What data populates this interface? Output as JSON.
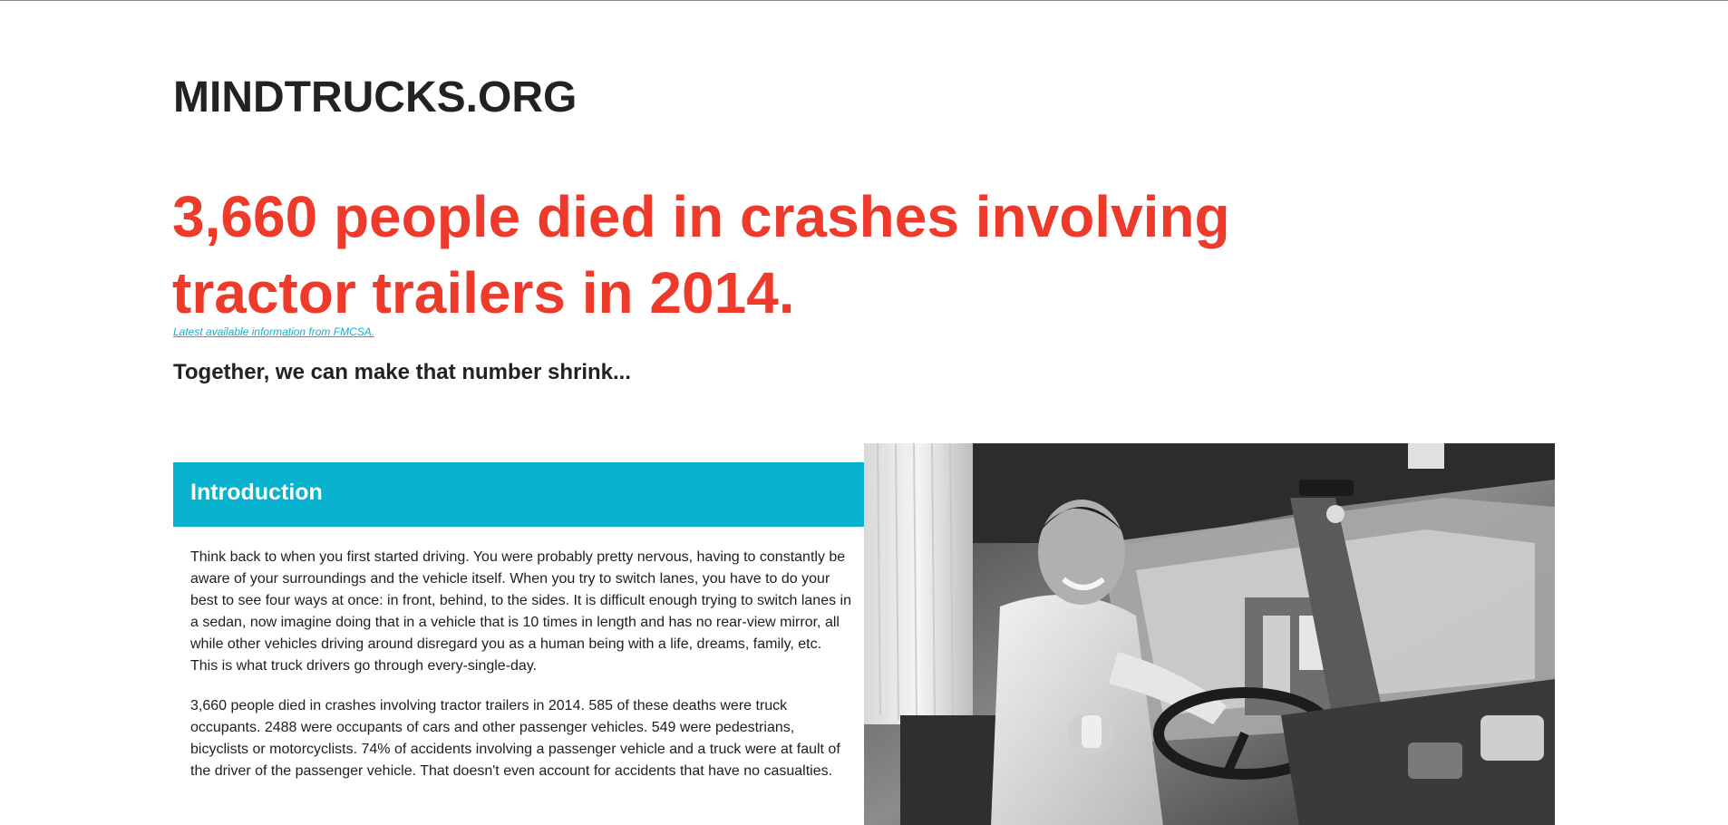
{
  "site": {
    "logo": "MINDTRUCKS.ORG"
  },
  "hero": {
    "headline": "3,660 people died in crashes involving tractor trailers in 2014.",
    "source_link": "Latest available information from FMCSA.",
    "tagline": "Together, we can make that number shrink..."
  },
  "intro": {
    "title": "Introduction",
    "paragraphs": [
      "Think back to when you first started driving. You were probably pretty nervous, having to constantly be aware of your surroundings and the vehicle itself. When you try to switch lanes, you have to do your best to see four ways at once: in front, behind, to the sides. It is difficult enough trying to switch lanes in a sedan, now imagine doing that in a vehicle that is 10 times in length and has no rear-view mirror, all while other vehicles driving around disregard you as a human being with a life, dreams, family, etc. This is what truck drivers go through every-single-day.",
      "3,660 people died in crashes involving tractor trailers in 2014. 585 of these deaths were truck occupants. 2488 were occupants of cars and other passenger vehicles. 549 were pedestrians, bicyclists or motorcyclists. 74% of accidents involving a passenger vehicle and a truck were at fault of the driver of the passenger vehicle. That doesn't even account for accidents that have no casualties."
    ]
  },
  "colors": {
    "headline": "#ee3a2b",
    "banner": "#08b2cf",
    "link": "#15aed0",
    "text": "#222222"
  },
  "photo": {
    "subject": "truck-driver-photo"
  }
}
